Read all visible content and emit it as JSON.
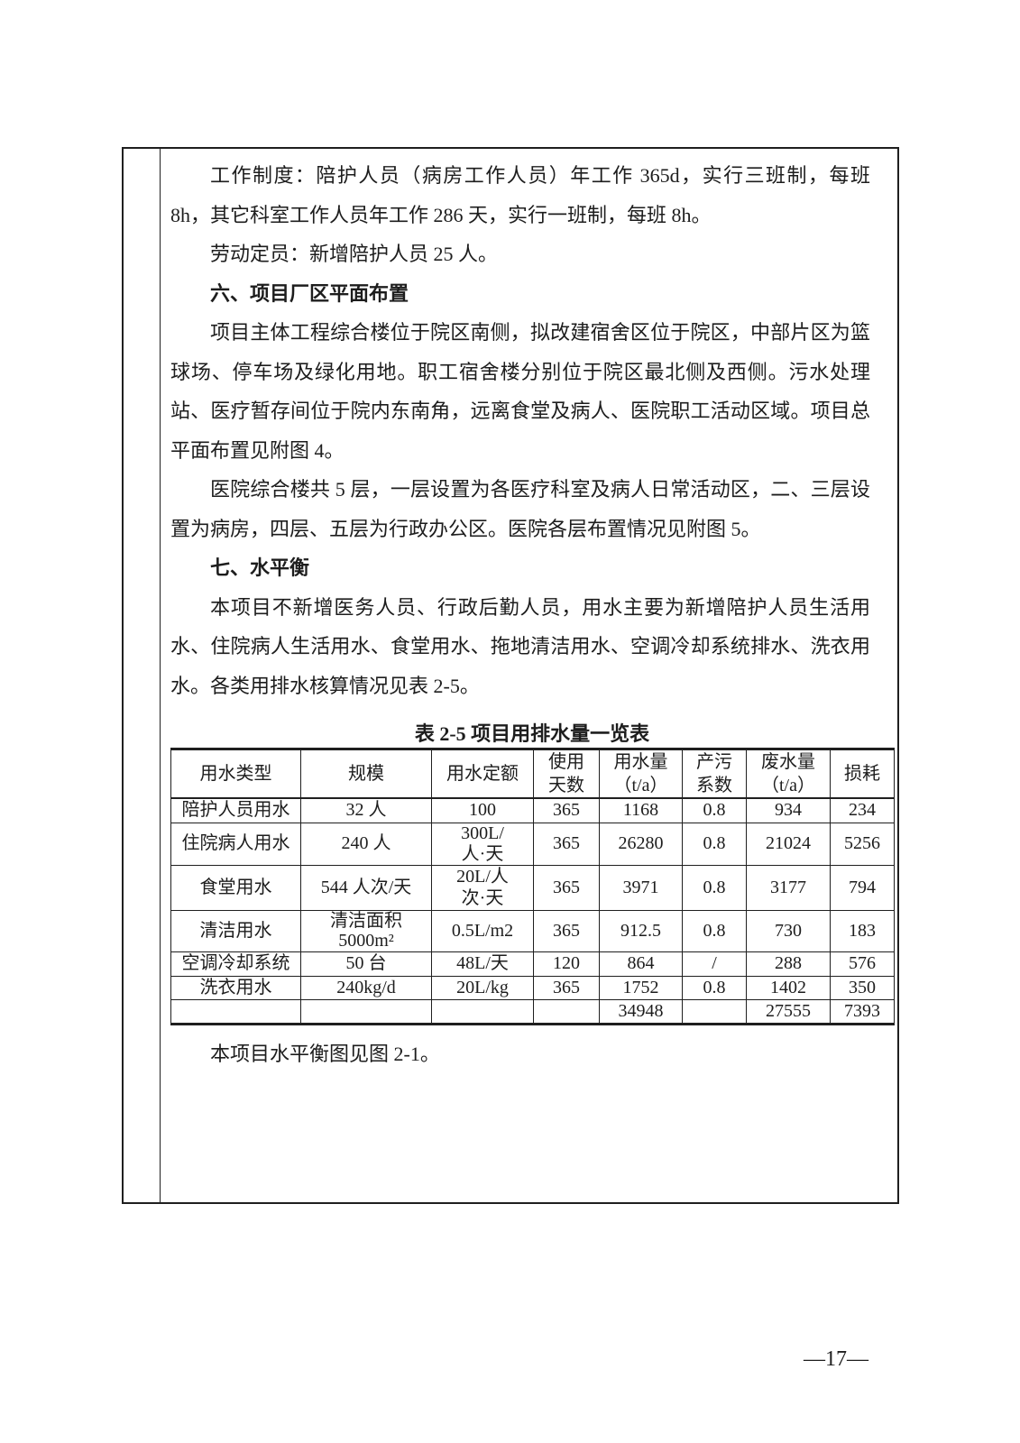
{
  "page": {
    "number": "—17—"
  },
  "colors": {
    "text": "#1d1d1d",
    "border": "#1f1f1f",
    "background": "#ffffff"
  },
  "document": {
    "paragraphs": {
      "work_schedule": "工作制度：陪护人员（病房工作人员）年工作 365d，实行三班制，每班 8h，其它科室工作人员年工作 286 天，实行一班制，每班 8h。",
      "staffing": "劳动定员：新增陪护人员 25 人。",
      "heading_six": "六、项目厂区平面布置",
      "layout_para_1": "项目主体工程综合楼位于院区南侧，拟改建宿舍区位于院区，中部片区为篮球场、停车场及绿化用地。职工宿舍楼分别位于院区最北侧及西侧。污水处理站、医疗暂存间位于院内东南角，远离食堂及病人、医院职工活动区域。项目总平面布置见附图 4。",
      "layout_para_2": "医院综合楼共 5 层，一层设置为各医疗科室及病人日常活动区，二、三层设置为病房，四层、五层为行政办公区。医院各层布置情况见附图 5。",
      "heading_seven": "七、水平衡",
      "water_para": "本项目不新增医务人员、行政后勤人员，用水主要为新增陪护人员生活用水、住院病人生活用水、食堂用水、拖地清洁用水、空调冷却系统排水、洗衣用水。各类用排水核算情况见表 2-5。",
      "water_balance_note": "本项目水平衡图见图 2-1。"
    },
    "table": {
      "title": "表 2-5 项目用排水量一览表",
      "headers": [
        "用水类型",
        "规模",
        "用水定额",
        "使用\n天数",
        "用水量\n（t/a）",
        "产污\n系数",
        "废水量\n（t/a）",
        "损耗"
      ],
      "rows": [
        [
          "陪护人员用水",
          "32 人",
          "100",
          "365",
          "1168",
          "0.8",
          "934",
          "234"
        ],
        [
          "住院病人用水",
          "240 人",
          "300L/\n人·天",
          "365",
          "26280",
          "0.8",
          "21024",
          "5256"
        ],
        [
          "食堂用水",
          "544 人次/天",
          "20L/人\n次·天",
          "365",
          "3971",
          "0.8",
          "3177",
          "794"
        ],
        [
          "清洁用水",
          "清洁面积\n5000m²",
          "0.5L/m2",
          "365",
          "912.5",
          "0.8",
          "730",
          "183"
        ],
        [
          "空调冷却系统",
          "50 台",
          "48L/天",
          "120",
          "864",
          "/",
          "288",
          "576"
        ],
        [
          "洗衣用水",
          "240kg/d",
          "20L/kg",
          "365",
          "1752",
          "0.8",
          "1402",
          "350"
        ],
        [
          "",
          "",
          "",
          "",
          "34948",
          "",
          "27555",
          "7393"
        ]
      ]
    }
  }
}
